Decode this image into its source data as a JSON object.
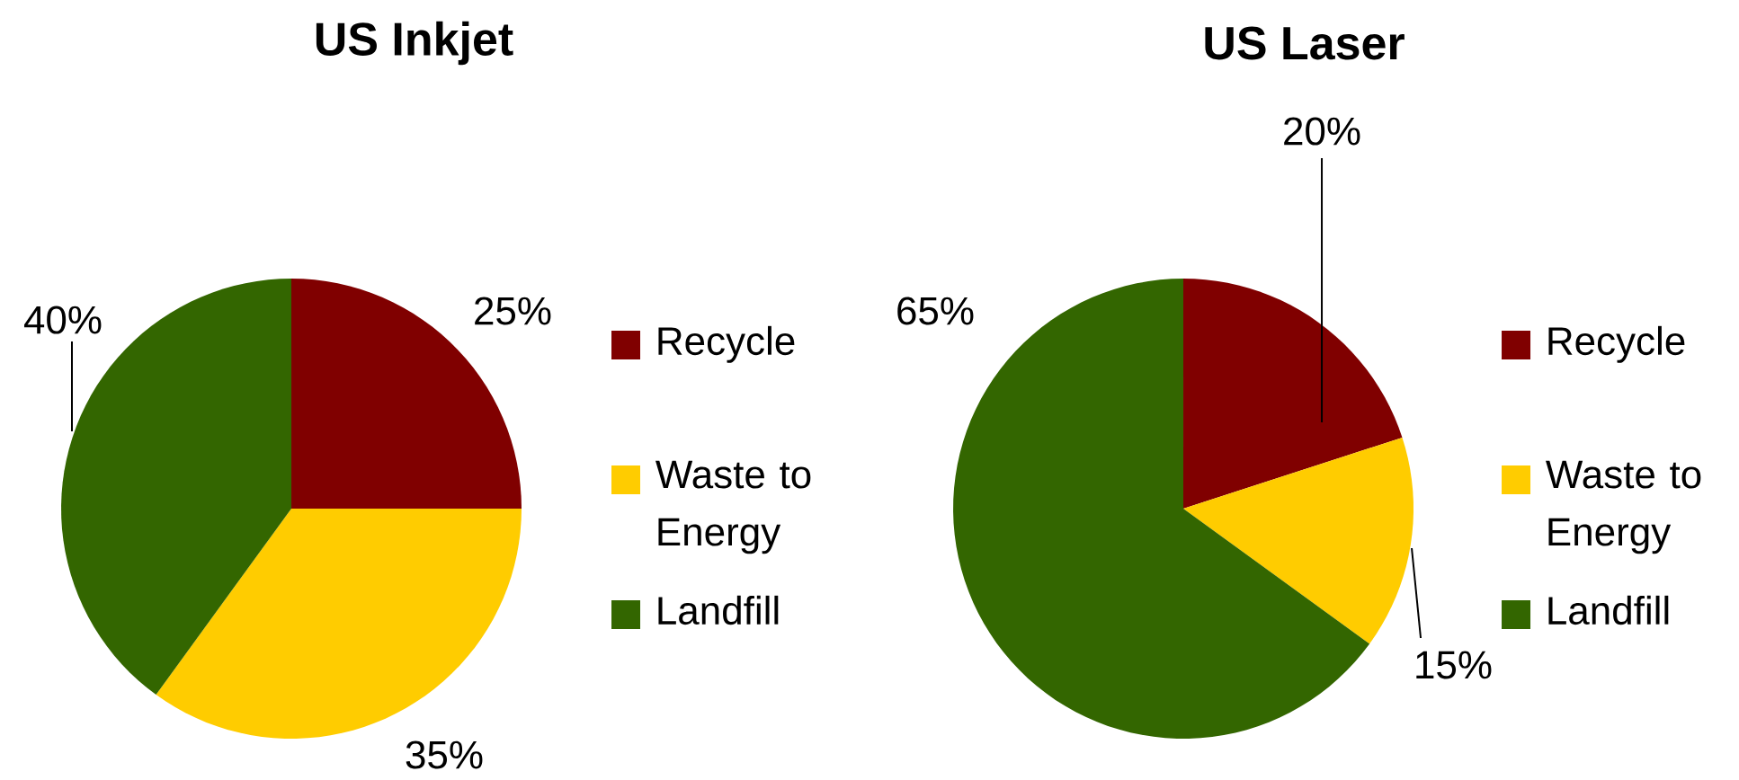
{
  "chart_data": [
    {
      "type": "pie",
      "title": "US Inkjet",
      "categories": [
        "Recycle",
        "Waste to Energy",
        "Landfill"
      ],
      "values": [
        25,
        35,
        40
      ],
      "value_labels": [
        "25%",
        "35%",
        "40%"
      ],
      "colors": [
        "#800000",
        "#ffcc00",
        "#336600"
      ],
      "legend": "right"
    },
    {
      "type": "pie",
      "title": "US Laser",
      "categories": [
        "Recycle",
        "Waste to Energy",
        "Landfill"
      ],
      "values": [
        20,
        15,
        65
      ],
      "value_labels": [
        "20%",
        "15%",
        "65%"
      ],
      "colors": [
        "#800000",
        "#ffcc00",
        "#336600"
      ],
      "legend": "right"
    }
  ]
}
